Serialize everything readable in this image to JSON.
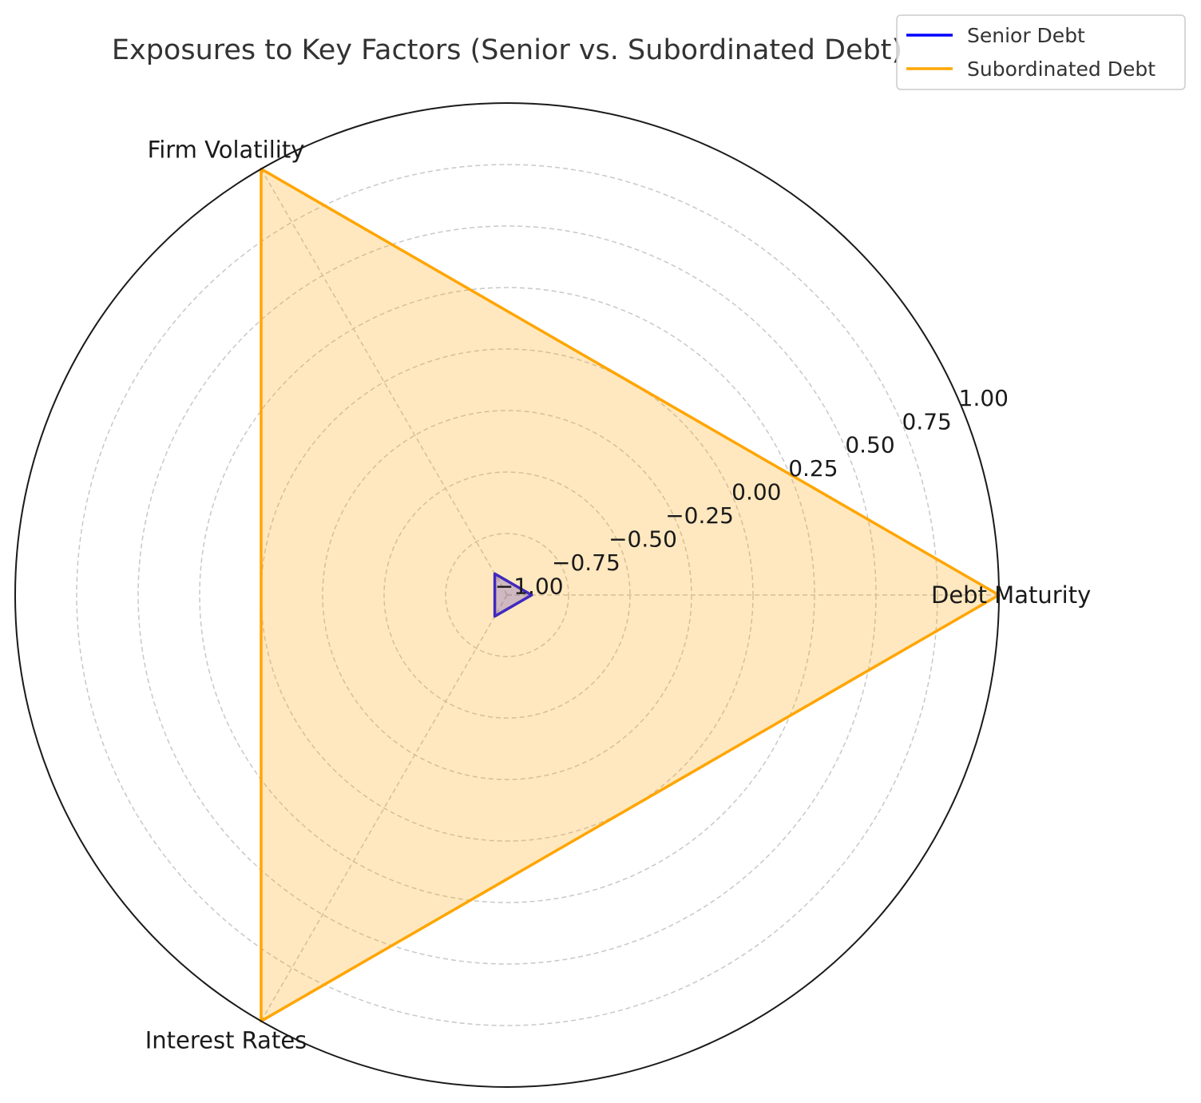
{
  "chart_data": {
    "type": "radar",
    "title": "Exposures to Key Factors (Senior vs. Subordinated Debt)",
    "categories": [
      "Debt Maturity",
      "Firm Volatility",
      "Interest Rates"
    ],
    "rlim": [
      -1.0,
      1.0
    ],
    "rticks": [
      -1.0,
      -0.75,
      -0.5,
      -0.25,
      0.0,
      0.25,
      0.5,
      0.75,
      1.0
    ],
    "rtick_labels": [
      "−1.00",
      "−0.75",
      "−0.50",
      "−0.25",
      "0.00",
      "0.25",
      "0.50",
      "0.75",
      "1.00"
    ],
    "grid": true,
    "legend_position": "top-right",
    "series": [
      {
        "name": "Senior Debt",
        "values": [
          -0.9,
          -0.9,
          -0.9
        ],
        "color": "#0000ff"
      },
      {
        "name": "Subordinated Debt",
        "values": [
          1.0,
          1.0,
          1.0
        ],
        "color": "#ffa500"
      }
    ]
  }
}
